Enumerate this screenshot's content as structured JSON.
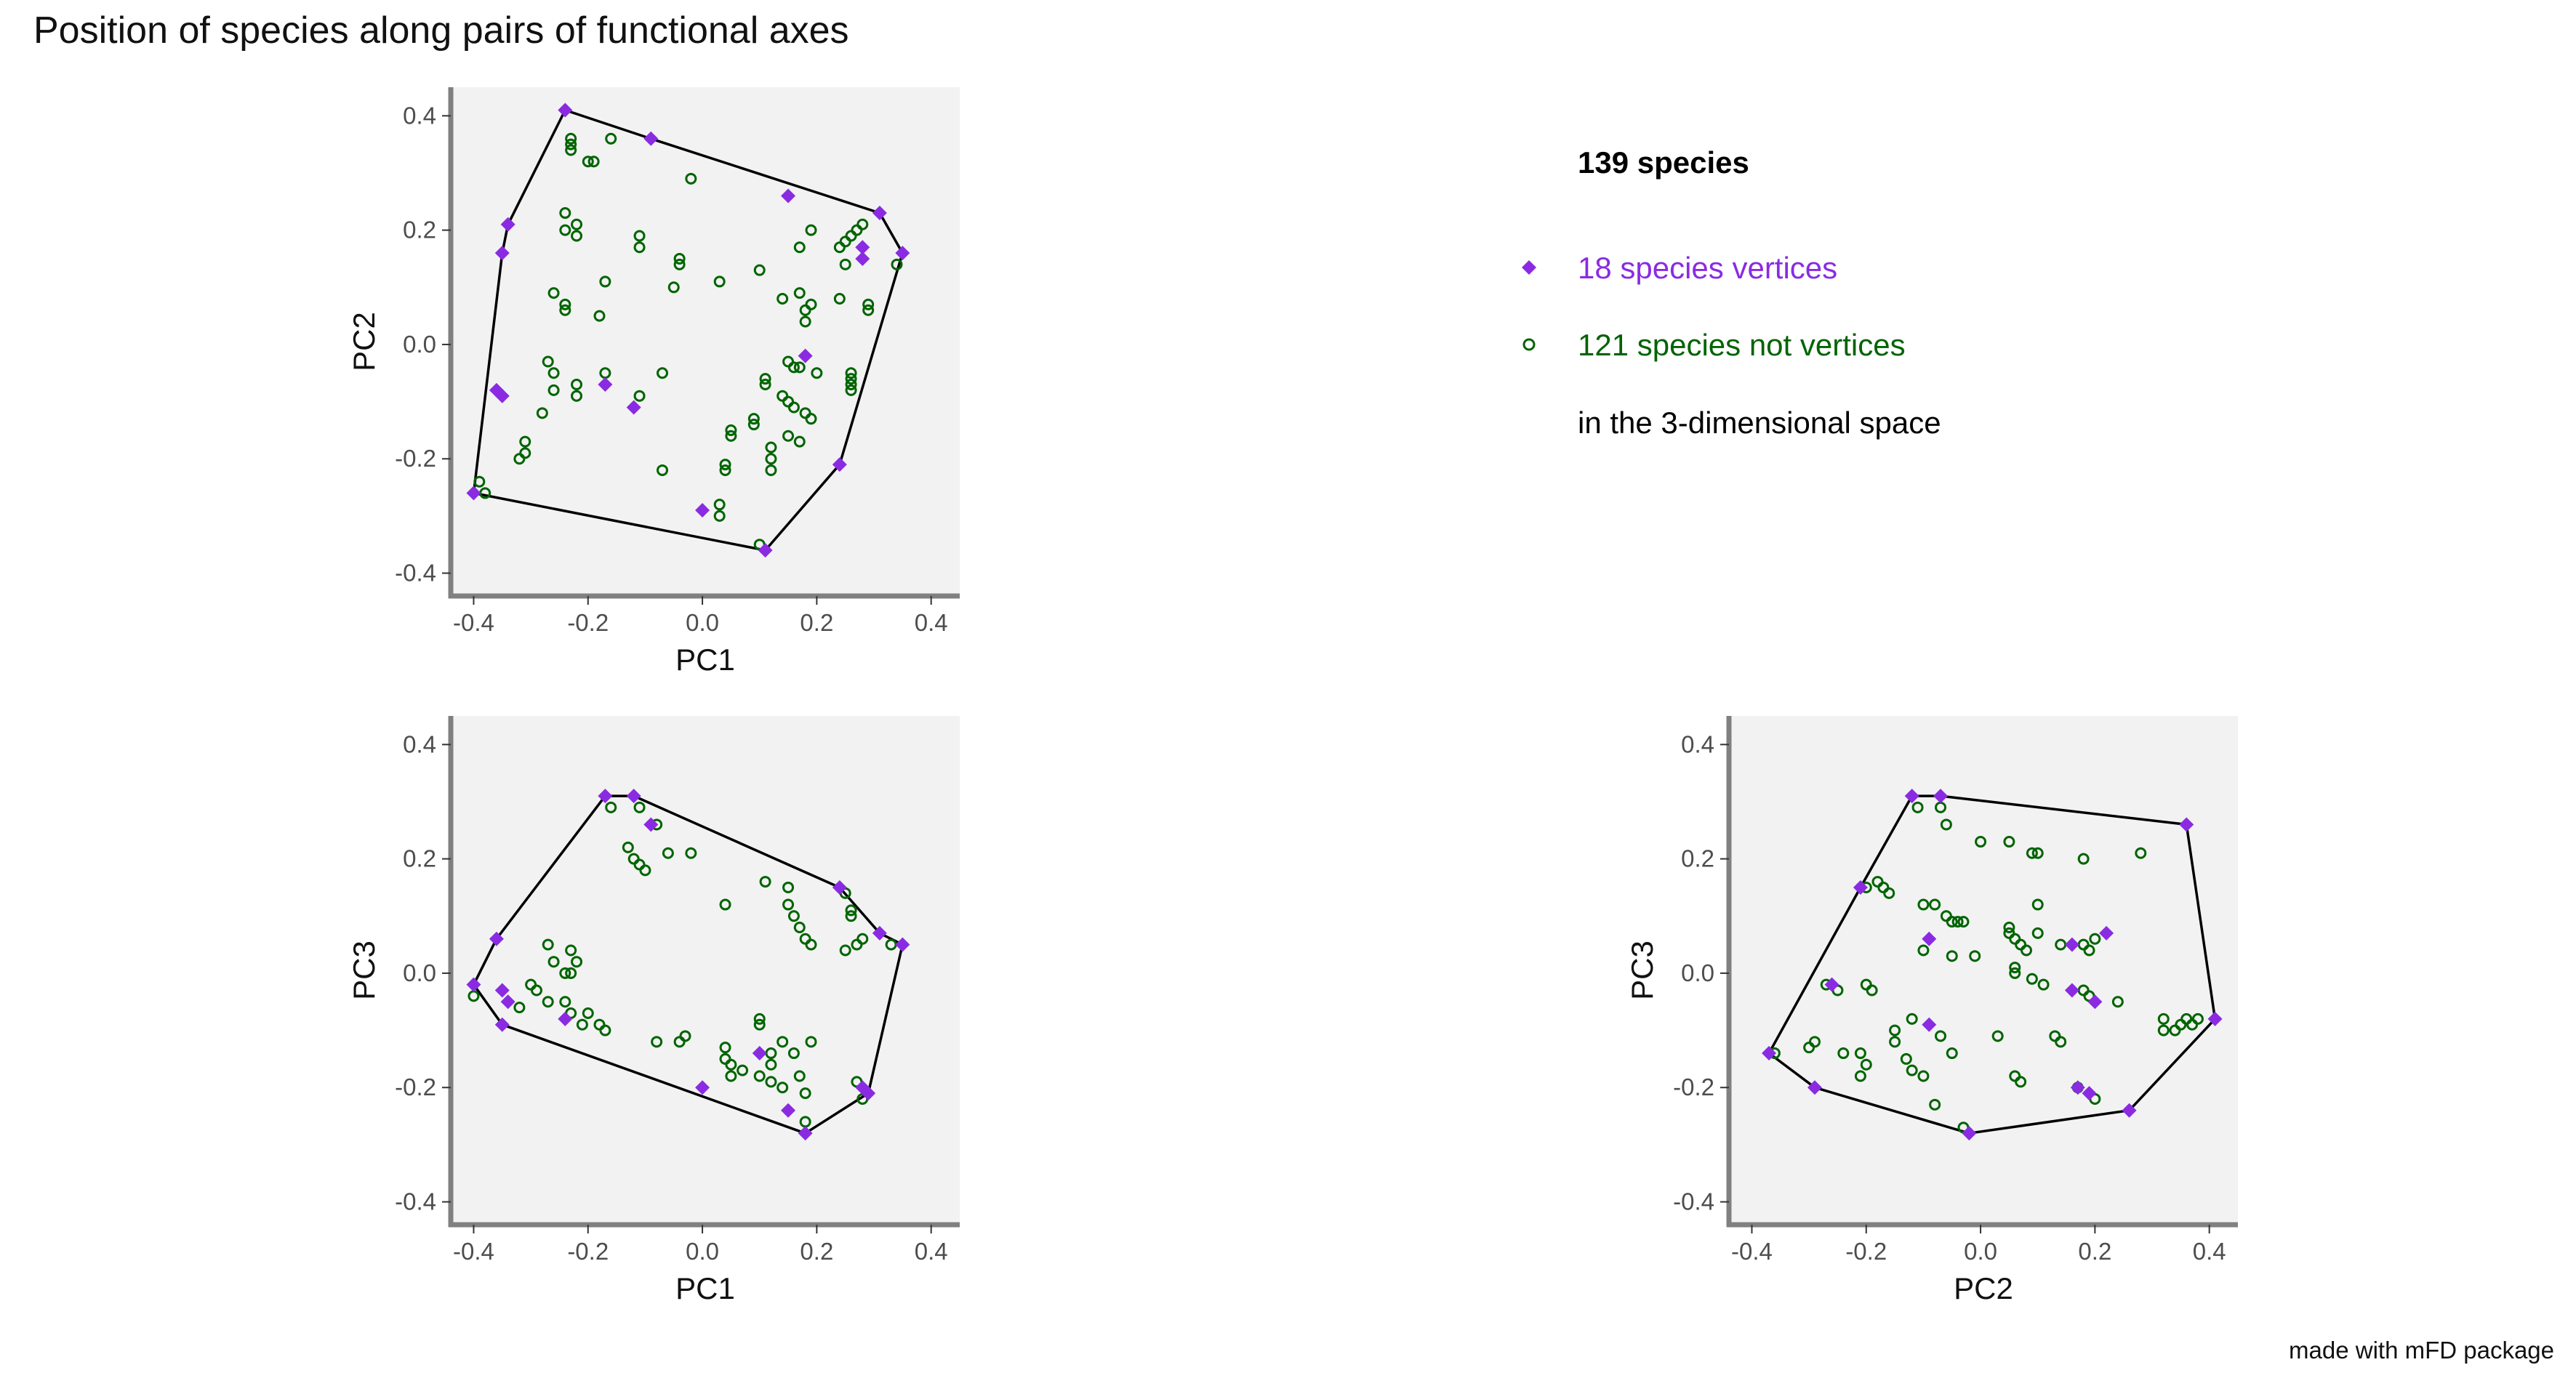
{
  "title": "Position of species along pairs of functional axes",
  "footer": "made with mFD package",
  "colors": {
    "vertex": "#8A2BE2",
    "nonvertex": "#006400",
    "panel_bg": "#F2F2F2",
    "hull": "#000000",
    "axis": "#808080"
  },
  "legend": {
    "heading": "139 species",
    "vertices_label": "18 species vertices",
    "nonvertices_label": "121 species not vertices",
    "space_label": "in the 3-dimensional space"
  },
  "chart_data": [
    {
      "type": "scatter",
      "xlabel": "PC1",
      "ylabel": "PC2",
      "xlim": [
        -0.44,
        0.45
      ],
      "ylim": [
        -0.44,
        0.45
      ],
      "xticks": [
        "-0.4",
        "-0.2",
        "0.0",
        "0.2",
        "0.4"
      ],
      "yticks": [
        "-0.4",
        "-0.2",
        "0.0",
        "0.2",
        "0.4"
      ],
      "hull": [
        [
          -0.24,
          0.41
        ],
        [
          -0.09,
          0.36
        ],
        [
          0.31,
          0.23
        ],
        [
          0.35,
          0.16
        ],
        [
          0.24,
          -0.21
        ],
        [
          0.11,
          -0.36
        ],
        [
          -0.4,
          -0.26
        ],
        [
          -0.35,
          0.16
        ],
        [
          -0.34,
          0.21
        ]
      ],
      "vertices": [
        [
          -0.24,
          0.41
        ],
        [
          -0.09,
          0.36
        ],
        [
          0.15,
          0.26
        ],
        [
          0.31,
          0.23
        ],
        [
          0.35,
          0.16
        ],
        [
          0.28,
          0.17
        ],
        [
          0.28,
          0.15
        ],
        [
          -0.34,
          0.21
        ],
        [
          -0.35,
          0.16
        ],
        [
          -0.36,
          -0.08
        ],
        [
          -0.35,
          -0.09
        ],
        [
          -0.17,
          -0.07
        ],
        [
          -0.12,
          -0.11
        ],
        [
          0.18,
          -0.02
        ],
        [
          0.24,
          -0.21
        ],
        [
          0.0,
          -0.29
        ],
        [
          0.11,
          -0.36
        ],
        [
          -0.4,
          -0.26
        ]
      ],
      "non_vertices": [
        [
          -0.23,
          0.36
        ],
        [
          -0.23,
          0.35
        ],
        [
          -0.23,
          0.34
        ],
        [
          -0.2,
          0.32
        ],
        [
          -0.19,
          0.32
        ],
        [
          -0.16,
          0.36
        ],
        [
          -0.02,
          0.29
        ],
        [
          -0.24,
          0.23
        ],
        [
          -0.22,
          0.21
        ],
        [
          -0.24,
          0.2
        ],
        [
          -0.22,
          0.19
        ],
        [
          -0.11,
          0.19
        ],
        [
          -0.11,
          0.17
        ],
        [
          -0.04,
          0.15
        ],
        [
          -0.04,
          0.14
        ],
        [
          0.1,
          0.13
        ],
        [
          0.19,
          0.2
        ],
        [
          0.17,
          0.17
        ],
        [
          0.24,
          0.17
        ],
        [
          0.25,
          0.18
        ],
        [
          0.26,
          0.19
        ],
        [
          0.27,
          0.2
        ],
        [
          0.28,
          0.21
        ],
        [
          0.25,
          0.14
        ],
        [
          0.34,
          0.14
        ],
        [
          -0.26,
          0.09
        ],
        [
          -0.24,
          0.07
        ],
        [
          -0.24,
          0.06
        ],
        [
          -0.17,
          0.11
        ],
        [
          -0.18,
          0.05
        ],
        [
          -0.05,
          0.1
        ],
        [
          0.03,
          0.11
        ],
        [
          0.14,
          0.08
        ],
        [
          0.17,
          0.09
        ],
        [
          0.19,
          0.07
        ],
        [
          0.18,
          0.06
        ],
        [
          0.18,
          0.04
        ],
        [
          0.24,
          0.08
        ],
        [
          0.29,
          0.07
        ],
        [
          0.29,
          0.06
        ],
        [
          -0.27,
          -0.03
        ],
        [
          -0.26,
          -0.05
        ],
        [
          -0.26,
          -0.08
        ],
        [
          -0.22,
          -0.07
        ],
        [
          -0.22,
          -0.09
        ],
        [
          -0.17,
          -0.05
        ],
        [
          -0.11,
          -0.09
        ],
        [
          -0.07,
          -0.05
        ],
        [
          -0.28,
          -0.12
        ],
        [
          -0.31,
          -0.17
        ],
        [
          -0.31,
          -0.19
        ],
        [
          -0.32,
          -0.2
        ],
        [
          0.11,
          -0.06
        ],
        [
          0.11,
          -0.07
        ],
        [
          0.15,
          -0.03
        ],
        [
          0.16,
          -0.04
        ],
        [
          0.17,
          -0.04
        ],
        [
          0.15,
          -0.1
        ],
        [
          0.16,
          -0.11
        ],
        [
          0.14,
          -0.09
        ],
        [
          0.18,
          -0.12
        ],
        [
          0.19,
          -0.13
        ],
        [
          0.2,
          -0.05
        ],
        [
          0.26,
          -0.05
        ],
        [
          0.26,
          -0.06
        ],
        [
          0.26,
          -0.07
        ],
        [
          0.26,
          -0.08
        ],
        [
          0.05,
          -0.15
        ],
        [
          0.05,
          -0.16
        ],
        [
          0.09,
          -0.13
        ],
        [
          0.09,
          -0.14
        ],
        [
          0.12,
          -0.18
        ],
        [
          0.12,
          -0.2
        ],
        [
          0.12,
          -0.22
        ],
        [
          0.17,
          -0.17
        ],
        [
          0.15,
          -0.16
        ],
        [
          0.04,
          -0.21
        ],
        [
          0.04,
          -0.22
        ],
        [
          -0.07,
          -0.22
        ],
        [
          0.03,
          -0.28
        ],
        [
          0.03,
          -0.3
        ],
        [
          0.1,
          -0.35
        ],
        [
          -0.39,
          -0.24
        ],
        [
          -0.38,
          -0.26
        ]
      ]
    },
    {
      "type": "scatter",
      "xlabel": "PC1",
      "ylabel": "PC3",
      "xlim": [
        -0.44,
        0.45
      ],
      "ylim": [
        -0.44,
        0.45
      ],
      "xticks": [
        "-0.4",
        "-0.2",
        "0.0",
        "0.2",
        "0.4"
      ],
      "yticks": [
        "-0.4",
        "-0.2",
        "0.0",
        "0.2",
        "0.4"
      ],
      "hull": [
        [
          -0.17,
          0.31
        ],
        [
          -0.12,
          0.31
        ],
        [
          0.24,
          0.15
        ],
        [
          0.31,
          0.07
        ],
        [
          0.35,
          0.05
        ],
        [
          0.29,
          -0.21
        ],
        [
          0.18,
          -0.28
        ],
        [
          -0.35,
          -0.09
        ],
        [
          -0.4,
          -0.02
        ],
        [
          -0.36,
          0.06
        ]
      ],
      "vertices": [
        [
          -0.17,
          0.31
        ],
        [
          -0.12,
          0.31
        ],
        [
          -0.09,
          0.26
        ],
        [
          0.24,
          0.15
        ],
        [
          0.31,
          0.07
        ],
        [
          0.35,
          0.05
        ],
        [
          -0.36,
          0.06
        ],
        [
          -0.4,
          -0.02
        ],
        [
          -0.35,
          -0.03
        ],
        [
          -0.34,
          -0.05
        ],
        [
          -0.35,
          -0.09
        ],
        [
          -0.24,
          -0.08
        ],
        [
          0.0,
          -0.2
        ],
        [
          0.1,
          -0.14
        ],
        [
          0.15,
          -0.24
        ],
        [
          0.28,
          -0.2
        ],
        [
          0.29,
          -0.21
        ],
        [
          0.18,
          -0.28
        ]
      ],
      "non_vertices": [
        [
          -0.16,
          0.29
        ],
        [
          -0.11,
          0.29
        ],
        [
          -0.08,
          0.26
        ],
        [
          -0.13,
          0.22
        ],
        [
          -0.12,
          0.2
        ],
        [
          -0.11,
          0.19
        ],
        [
          -0.1,
          0.18
        ],
        [
          -0.06,
          0.21
        ],
        [
          -0.02,
          0.21
        ],
        [
          0.04,
          0.12
        ],
        [
          0.11,
          0.16
        ],
        [
          0.15,
          0.15
        ],
        [
          0.15,
          0.12
        ],
        [
          0.16,
          0.1
        ],
        [
          0.17,
          0.08
        ],
        [
          0.18,
          0.06
        ],
        [
          0.19,
          0.05
        ],
        [
          0.25,
          0.14
        ],
        [
          0.26,
          0.1
        ],
        [
          0.26,
          0.11
        ],
        [
          0.25,
          0.04
        ],
        [
          0.27,
          0.05
        ],
        [
          0.28,
          0.06
        ],
        [
          0.33,
          0.05
        ],
        [
          -0.27,
          0.05
        ],
        [
          -0.26,
          0.02
        ],
        [
          -0.23,
          0.04
        ],
        [
          -0.22,
          0.02
        ],
        [
          -0.24,
          0.0
        ],
        [
          -0.23,
          0.0
        ],
        [
          -0.3,
          -0.02
        ],
        [
          -0.29,
          -0.03
        ],
        [
          -0.27,
          -0.05
        ],
        [
          -0.24,
          -0.05
        ],
        [
          -0.23,
          -0.07
        ],
        [
          -0.2,
          -0.07
        ],
        [
          -0.21,
          -0.09
        ],
        [
          -0.18,
          -0.09
        ],
        [
          -0.17,
          -0.1
        ],
        [
          -0.32,
          -0.06
        ],
        [
          -0.4,
          -0.04
        ],
        [
          -0.08,
          -0.12
        ],
        [
          -0.04,
          -0.12
        ],
        [
          -0.03,
          -0.11
        ],
        [
          0.1,
          -0.08
        ],
        [
          0.1,
          -0.09
        ],
        [
          0.04,
          -0.13
        ],
        [
          0.04,
          -0.15
        ],
        [
          0.05,
          -0.16
        ],
        [
          0.05,
          -0.18
        ],
        [
          0.07,
          -0.17
        ],
        [
          0.1,
          -0.18
        ],
        [
          0.12,
          -0.14
        ],
        [
          0.12,
          -0.16
        ],
        [
          0.12,
          -0.19
        ],
        [
          0.14,
          -0.2
        ],
        [
          0.14,
          -0.12
        ],
        [
          0.16,
          -0.14
        ],
        [
          0.17,
          -0.18
        ],
        [
          0.18,
          -0.21
        ],
        [
          0.19,
          -0.12
        ],
        [
          0.18,
          -0.26
        ],
        [
          0.27,
          -0.19
        ],
        [
          0.28,
          -0.22
        ]
      ]
    },
    {
      "type": "scatter",
      "xlabel": "PC2",
      "ylabel": "PC3",
      "xlim": [
        -0.44,
        0.45
      ],
      "ylim": [
        -0.44,
        0.45
      ],
      "xticks": [
        "-0.4",
        "-0.2",
        "0.0",
        "0.2",
        "0.4"
      ],
      "yticks": [
        "-0.4",
        "-0.2",
        "0.0",
        "0.2",
        "0.4"
      ],
      "hull": [
        [
          -0.12,
          0.31
        ],
        [
          -0.07,
          0.31
        ],
        [
          0.36,
          0.26
        ],
        [
          0.41,
          -0.08
        ],
        [
          0.26,
          -0.24
        ],
        [
          -0.02,
          -0.28
        ],
        [
          -0.29,
          -0.2
        ],
        [
          -0.37,
          -0.14
        ],
        [
          -0.21,
          0.15
        ]
      ],
      "vertices": [
        [
          -0.12,
          0.31
        ],
        [
          -0.07,
          0.31
        ],
        [
          0.36,
          0.26
        ],
        [
          0.41,
          -0.08
        ],
        [
          0.26,
          -0.24
        ],
        [
          -0.02,
          -0.28
        ],
        [
          -0.29,
          -0.2
        ],
        [
          -0.37,
          -0.14
        ],
        [
          -0.21,
          0.15
        ],
        [
          -0.26,
          -0.02
        ],
        [
          -0.09,
          0.06
        ],
        [
          0.16,
          0.05
        ],
        [
          0.22,
          0.07
        ],
        [
          0.16,
          -0.03
        ],
        [
          0.2,
          -0.05
        ],
        [
          -0.09,
          -0.09
        ],
        [
          0.17,
          -0.2
        ],
        [
          0.19,
          -0.21
        ]
      ],
      "non_vertices": [
        [
          -0.11,
          0.29
        ],
        [
          -0.07,
          0.29
        ],
        [
          -0.06,
          0.26
        ],
        [
          0.0,
          0.23
        ],
        [
          0.05,
          0.23
        ],
        [
          0.09,
          0.21
        ],
        [
          0.1,
          0.21
        ],
        [
          0.18,
          0.2
        ],
        [
          0.28,
          0.21
        ],
        [
          -0.2,
          0.15
        ],
        [
          -0.18,
          0.16
        ],
        [
          -0.17,
          0.15
        ],
        [
          -0.16,
          0.14
        ],
        [
          -0.1,
          0.12
        ],
        [
          -0.08,
          0.12
        ],
        [
          -0.06,
          0.1
        ],
        [
          -0.05,
          0.09
        ],
        [
          -0.04,
          0.09
        ],
        [
          -0.03,
          0.09
        ],
        [
          0.05,
          0.08
        ],
        [
          0.1,
          0.07
        ],
        [
          0.1,
          0.12
        ],
        [
          -0.1,
          0.04
        ],
        [
          -0.05,
          0.03
        ],
        [
          -0.01,
          0.03
        ],
        [
          0.05,
          0.07
        ],
        [
          0.06,
          0.06
        ],
        [
          0.07,
          0.05
        ],
        [
          0.08,
          0.04
        ],
        [
          0.14,
          0.05
        ],
        [
          0.18,
          0.05
        ],
        [
          0.19,
          0.04
        ],
        [
          0.2,
          0.06
        ],
        [
          0.06,
          0.01
        ],
        [
          0.06,
          0.0
        ],
        [
          0.09,
          -0.01
        ],
        [
          0.11,
          -0.02
        ],
        [
          0.18,
          -0.03
        ],
        [
          0.19,
          -0.04
        ],
        [
          0.24,
          -0.05
        ],
        [
          0.38,
          -0.08
        ],
        [
          0.37,
          -0.09
        ],
        [
          0.36,
          -0.08
        ],
        [
          0.35,
          -0.09
        ],
        [
          0.34,
          -0.1
        ],
        [
          0.32,
          -0.08
        ],
        [
          0.32,
          -0.1
        ],
        [
          -0.27,
          -0.02
        ],
        [
          -0.25,
          -0.03
        ],
        [
          -0.2,
          -0.02
        ],
        [
          -0.19,
          -0.03
        ],
        [
          -0.12,
          -0.08
        ],
        [
          -0.15,
          -0.1
        ],
        [
          -0.15,
          -0.12
        ],
        [
          -0.07,
          -0.11
        ],
        [
          -0.05,
          -0.14
        ],
        [
          -0.13,
          -0.15
        ],
        [
          -0.12,
          -0.17
        ],
        [
          -0.1,
          -0.18
        ],
        [
          -0.21,
          -0.14
        ],
        [
          -0.2,
          -0.16
        ],
        [
          -0.21,
          -0.18
        ],
        [
          -0.3,
          -0.13
        ],
        [
          -0.29,
          -0.12
        ],
        [
          -0.36,
          -0.14
        ],
        [
          -0.24,
          -0.14
        ],
        [
          -0.08,
          -0.23
        ],
        [
          -0.03,
          -0.27
        ],
        [
          0.06,
          -0.18
        ],
        [
          0.07,
          -0.19
        ],
        [
          0.13,
          -0.11
        ],
        [
          0.14,
          -0.12
        ],
        [
          0.17,
          -0.2
        ],
        [
          0.2,
          -0.22
        ],
        [
          0.03,
          -0.11
        ]
      ]
    }
  ]
}
